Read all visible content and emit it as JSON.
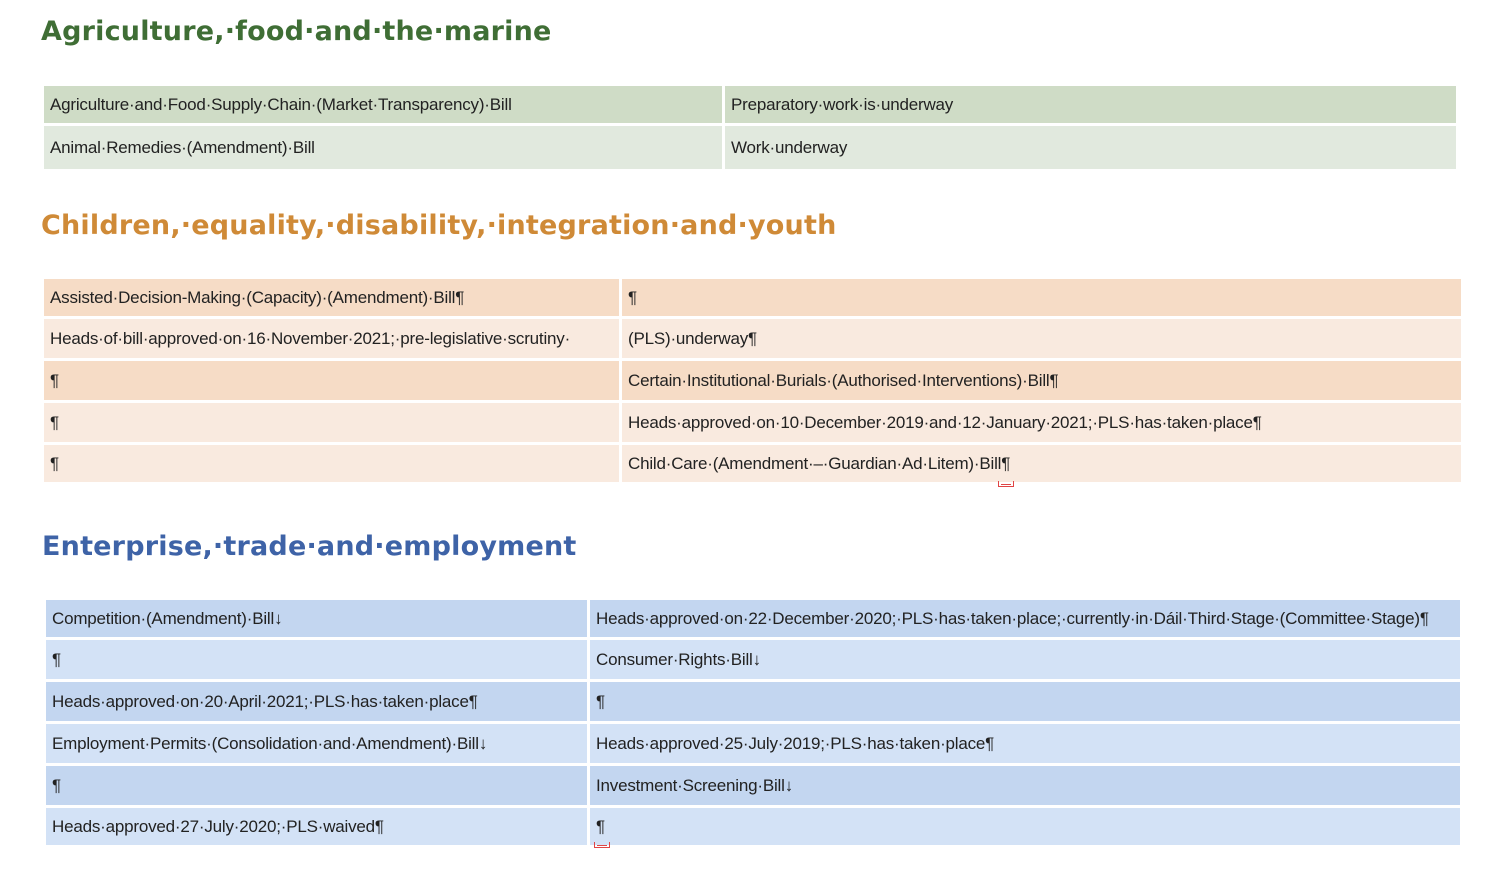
{
  "colors": {
    "agri_heading": "#3f6e35",
    "agri_dark": "#cfdcc6",
    "agri_light": "#e1e9de",
    "children_heading": "#cf8a37",
    "children_dark": "#f6dcc6",
    "children_light": "#f9eadf",
    "enterprise_heading": "#3e63a7",
    "enterprise_dark": "#c3d6f0",
    "enterprise_light": "#d3e2f6"
  },
  "sections": [
    {
      "heading": "Agriculture,·food·and·the·marine",
      "rows": [
        [
          "Agriculture·and·Food·Supply·Chain·(Market·Transparency)·Bill",
          "Preparatory·work·is·underway"
        ],
        [
          "Animal·Remedies·(Amendment)·Bill",
          "Work·underway"
        ]
      ]
    },
    {
      "heading": "Children,·equality,·disability,·integration·and·youth",
      "rows": [
        [
          "Assisted·Decision-Making·(Capacity)·(Amendment)·Bill¶",
          "¶"
        ],
        [
          "Heads·of·bill·approved·on·16·November·2021;·pre-legislative·scrutiny·",
          "(PLS)·underway¶"
        ],
        [
          "¶",
          "Certain·Institutional·Burials·(Authorised·Interventions)·Bill¶"
        ],
        [
          "¶",
          "Heads·approved·on·10·December·2019·and·12·January·2021;·PLS·has·taken·place¶"
        ],
        [
          "¶",
          "Child·Care·(Amendment·–·Guardian·Ad·Litem)·Bill¶"
        ]
      ]
    },
    {
      "heading": "Enterprise,·trade·and·employment",
      "rows": [
        [
          "Competition·(Amendment)·Bill↓",
          "Heads·approved·on·22·December·2020;·PLS·has·taken·place;·currently·in·Dáil·Third·Stage·(Committee·Stage)¶"
        ],
        [
          "¶",
          "Consumer·Rights·Bill↓"
        ],
        [
          "Heads·approved·on·20·April·2021;·PLS·has·taken·place¶",
          "¶"
        ],
        [
          "Employment·Permits·(Consolidation·and·Amendment)·Bill↓",
          "Heads·approved·25·July·2019;·PLS·has·taken·place¶"
        ],
        [
          "¶",
          "Investment·Screening·Bill↓"
        ],
        [
          "Heads·approved·27·July·2020;·PLS·waived¶",
          "¶"
        ]
      ]
    }
  ]
}
